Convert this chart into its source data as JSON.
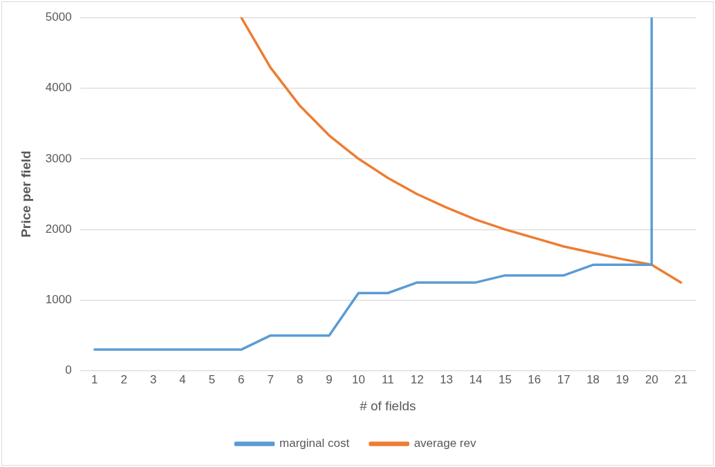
{
  "chart_data": {
    "type": "line",
    "xlabel": "# of fields",
    "ylabel": "Price per field",
    "xlim": [
      0.5,
      21.5
    ],
    "xticks": [
      1,
      2,
      3,
      4,
      5,
      6,
      7,
      8,
      9,
      10,
      11,
      12,
      13,
      14,
      15,
      16,
      17,
      18,
      19,
      20,
      21
    ],
    "ylim": [
      0,
      5000
    ],
    "yticks": [
      0,
      1000,
      2000,
      3000,
      4000,
      5000
    ],
    "grid": "y",
    "legend": "bottom",
    "marker": "none",
    "line_style": "solid",
    "series": [
      {
        "name": "marginal cost",
        "color": "#5b9bd5",
        "x": [
          1,
          2,
          3,
          4,
          5,
          6,
          7,
          8,
          9,
          10,
          11,
          12,
          13,
          14,
          15,
          16,
          17,
          18,
          19,
          20,
          20
        ],
        "values": [
          300,
          300,
          300,
          300,
          300,
          300,
          500,
          500,
          500,
          1100,
          1100,
          1250,
          1250,
          1250,
          1350,
          1350,
          1350,
          1500,
          1500,
          1500,
          5000
        ]
      },
      {
        "name": "average rev",
        "color": "#ed7d31",
        "x": [
          6,
          7,
          8,
          9,
          10,
          11,
          12,
          13,
          14,
          15,
          16,
          17,
          18,
          19,
          20,
          21
        ],
        "values": [
          5000,
          4290,
          3750,
          3330,
          3000,
          2730,
          2500,
          2310,
          2140,
          2000,
          1880,
          1760,
          1670,
          1580,
          1500,
          1250
        ]
      }
    ]
  }
}
